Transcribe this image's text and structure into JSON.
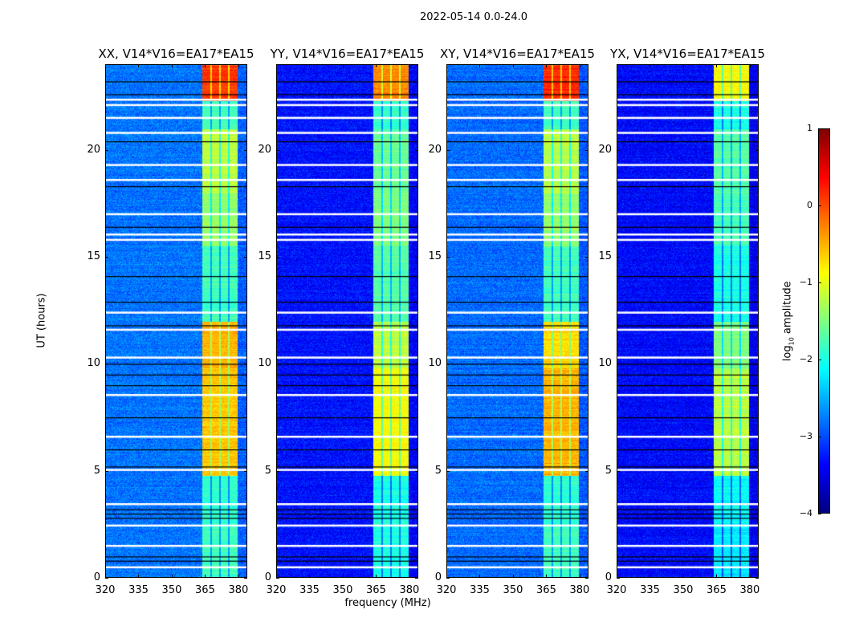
{
  "chart_data": {
    "type": "heatmap",
    "title": "2022-05-14 0.0-24.0",
    "xlabel": "frequency (MHz)",
    "ylabel": "UT (hours)",
    "xlim": [
      320,
      384
    ],
    "ylim": [
      0,
      24
    ],
    "xticks": [
      "320",
      "335",
      "350",
      "365",
      "380"
    ],
    "xtick_values": [
      320,
      335,
      350,
      365,
      380
    ],
    "yticks": [
      "0",
      "5",
      "10",
      "15",
      "20"
    ],
    "ytick_values": [
      0,
      5,
      10,
      15,
      20
    ],
    "colorbar": {
      "label_prefix": "log",
      "label_sub": "10",
      "label_suffix": " amplitude",
      "colormap": "jet",
      "range": [
        -4,
        1
      ],
      "ticks": [
        "1",
        "0",
        "−1",
        "−2",
        "−3",
        "−4"
      ],
      "tick_values": [
        1,
        0,
        -1,
        -2,
        -3,
        -4
      ]
    },
    "panels": [
      {
        "title": "XX, V14*V16=EA17*EA15",
        "background_level": -2.8
      },
      {
        "title": "YY, V14*V16=EA17*EA15",
        "background_level": -3.3
      },
      {
        "title": "XY, V14*V16=EA17*EA15",
        "background_level": -2.85
      },
      {
        "title": "YX, V14*V16=EA17*EA15",
        "background_level": -3.35
      }
    ],
    "rfi_band_mhz": [
      363.5,
      379.5
    ],
    "rfi_subband_gaps_mhz": [
      367.6,
      371.6,
      375.6
    ],
    "rfi_band_levels": {
      "columns": [
        "t_start",
        "t_end",
        "XX",
        "YY",
        "XY",
        "YX"
      ],
      "rows": [
        [
          0,
          2.5,
          -1.8,
          -2.0,
          -1.8,
          -2.2
        ],
        [
          2.5,
          4.8,
          -1.9,
          -2.0,
          -1.9,
          -2.1
        ],
        [
          4.8,
          9.8,
          -0.6,
          -0.9,
          -0.5,
          -1.2
        ],
        [
          9.8,
          12.0,
          -0.5,
          -1.2,
          -0.7,
          -1.5
        ],
        [
          12.0,
          15.5,
          -1.8,
          -1.7,
          -1.8,
          -2.0
        ],
        [
          15.5,
          18.0,
          -1.4,
          -1.5,
          -1.4,
          -1.8
        ],
        [
          18.0,
          21.0,
          -1.2,
          -1.6,
          -1.2,
          -1.7
        ],
        [
          21.0,
          22.3,
          -1.8,
          -1.9,
          -1.8,
          -2.0
        ],
        [
          22.3,
          24.0,
          0.1,
          -0.3,
          0.2,
          -0.9
        ]
      ]
    },
    "flagged_times_hr": [
      0.5,
      1.5,
      2.45,
      3.45,
      5.05,
      6.6,
      8.55,
      10.3,
      11.6,
      12.4,
      15.8,
      16.05,
      17.0,
      18.6,
      19.3,
      20.8,
      21.5,
      22.1,
      22.35
    ],
    "scan_boundaries_hr": [
      0.8,
      1.0,
      2.8,
      3.0,
      3.2,
      5.2,
      6.0,
      7.5,
      9.0,
      9.5,
      10.0,
      11.8,
      12.9,
      14.1,
      16.4,
      18.3,
      20.4,
      22.6,
      23.2
    ]
  }
}
